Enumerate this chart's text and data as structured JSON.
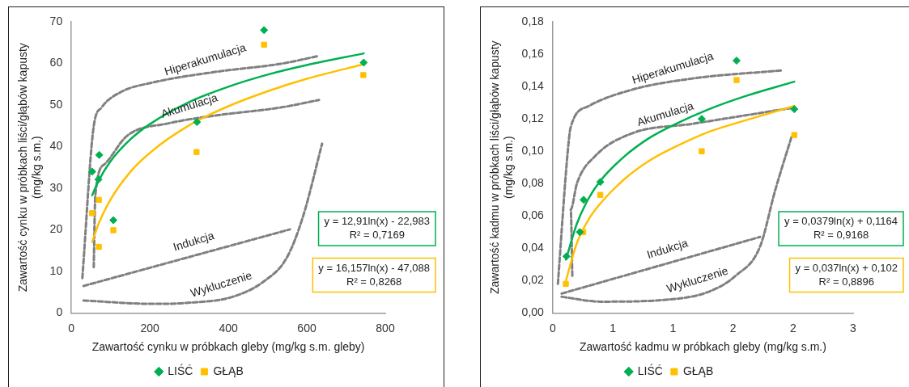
{
  "chart_data": [
    {
      "type": "scatter",
      "xlabel": "Zawartość cynku w próbkach gleby (mg/kg s.m. gleby)",
      "ylabel": "Zawartość cynku w próbkach liści/głąbów kapusty\n(mg/kg s.m.)",
      "xlim": [
        0,
        800
      ],
      "xticks": [
        0,
        200,
        400,
        600,
        800
      ],
      "ylim": [
        0,
        70
      ],
      "yticks": [
        0,
        10,
        20,
        30,
        40,
        50,
        60,
        70
      ],
      "grid": false,
      "legend": "bottom",
      "series": [
        {
          "name": "LIŚĆ",
          "marker": "diamond",
          "color": "#00b050",
          "x": [
            53,
            71,
            69,
            107,
            320,
            491,
            745
          ],
          "values": [
            34.0,
            38.0,
            32.1,
            22.3,
            45.9,
            68.0,
            60.2
          ]
        },
        {
          "name": "GŁĄB",
          "marker": "square",
          "color": "#ffc000",
          "x": [
            53,
            70,
            70,
            107,
            319,
            491,
            744
          ],
          "values": [
            24.0,
            27.2,
            15.9,
            19.9,
            38.7,
            64.5,
            57.2
          ]
        },
        {
          "type": "line",
          "marker": "none",
          "line_style": "solid",
          "color": "#00b050",
          "x": [
            53,
            70,
            100,
            150,
            200,
            300,
            400,
            500,
            600,
            745
          ],
          "values": [
            28.3,
            31.9,
            36.5,
            41.7,
            45.4,
            50.7,
            54.4,
            57.3,
            59.6,
            62.4
          ]
        },
        {
          "type": "line",
          "marker": "none",
          "line_style": "solid",
          "color": "#ffc000",
          "x": [
            53,
            70,
            100,
            150,
            200,
            300,
            400,
            500,
            600,
            745
          ],
          "values": [
            17.1,
            21.6,
            27.3,
            33.9,
            38.5,
            45.1,
            49.7,
            53.3,
            56.3,
            59.8
          ]
        },
        {
          "type": "line",
          "marker": "none",
          "line_style": "dashed",
          "color": "#808080",
          "x": [
            28,
            57,
            77,
            126,
            207,
            370,
            533,
            631
          ],
          "values": [
            8.4,
            44.9,
            49.4,
            53.1,
            55.4,
            58.0,
            59.9,
            61.8
          ]
        },
        {
          "type": "line",
          "marker": "none",
          "line_style": "dashed",
          "color": "#808080",
          "x": [
            57,
            61,
            85,
            142,
            248,
            370,
            533,
            631
          ],
          "values": [
            11.0,
            28.3,
            35.8,
            42.6,
            45.6,
            47.5,
            49.4,
            51.2
          ]
        },
        {
          "type": "line",
          "marker": "none",
          "line_style": "dashed",
          "color": "#808080",
          "x": [
            31,
            557
          ],
          "values": [
            6.5,
            20.1
          ]
        },
        {
          "type": "line",
          "marker": "none",
          "line_style": "dashed",
          "color": "#808080",
          "x": [
            31,
            207,
            289,
            411,
            492,
            549,
            590,
            639
          ],
          "values": [
            3.0,
            2.2,
            2.4,
            3.9,
            7.7,
            13.3,
            23.1,
            40.7
          ]
        }
      ],
      "annotations": [
        "Hiperakumulacja",
        "Akumulacja",
        "Indukcja",
        "Wykluczenie",
        "y = 12,91ln(x) - 22,983\nR² = 0,7169",
        "y = 16,157ln(x) - 47,088\nR² = 0,8268"
      ]
    },
    {
      "type": "scatter",
      "xlabel": "Zawartość kadmu w próbkach gleby (mg/kg s.m.)",
      "ylabel": "Zawartość kadmu w próbkach liści/głąbów kapusty\n(mg/kg s.m.)",
      "xlim": [
        0,
        2.5
      ],
      "xticks": [
        {
          "value": 0,
          "label": "0"
        },
        {
          "value": 0.5,
          "label": "1"
        },
        {
          "value": 1,
          "label": "1"
        },
        {
          "value": 1.5,
          "label": "2"
        },
        {
          "value": 2,
          "label": "2"
        },
        {
          "value": 2.5,
          "label": "3"
        }
      ],
      "ylim": [
        0,
        0.18
      ],
      "yticks": [
        {
          "value": 0,
          "label": "0,00"
        },
        {
          "value": 0.02,
          "label": "0,02"
        },
        {
          "value": 0.04,
          "label": "0,04"
        },
        {
          "value": 0.06,
          "label": "0,06"
        },
        {
          "value": 0.08,
          "label": "0,08"
        },
        {
          "value": 0.1,
          "label": "0,10"
        },
        {
          "value": 0.12,
          "label": "0,12"
        },
        {
          "value": 0.14,
          "label": "0,14"
        },
        {
          "value": 0.16,
          "label": "0,16"
        },
        {
          "value": 0.18,
          "label": "0,18"
        }
      ],
      "grid": false,
      "legend": "bottom",
      "series": [
        {
          "name": "LIŚĆ",
          "marker": "diamond",
          "color": "#00b050",
          "x": [
            0.114,
            0.226,
            0.257,
            0.396,
            1.24,
            1.53,
            2.01
          ],
          "values": [
            0.035,
            0.05,
            0.07,
            0.081,
            0.12,
            0.156,
            0.126
          ]
        },
        {
          "name": "GŁĄB",
          "marker": "square",
          "color": "#ffc000",
          "x": [
            0.109,
            0.254,
            0.396,
            1.24,
            1.53,
            2.01
          ],
          "values": [
            0.018,
            0.05,
            0.073,
            0.1,
            0.144,
            0.11
          ]
        },
        {
          "type": "line",
          "marker": "none",
          "line_style": "solid",
          "color": "#00b050",
          "x": [
            0.11,
            0.2,
            0.3,
            0.4,
            0.6,
            0.8,
            1.0,
            1.3,
            1.6,
            2.01
          ],
          "values": [
            0.033,
            0.055,
            0.071,
            0.082,
            0.097,
            0.108,
            0.116,
            0.126,
            0.134,
            0.143
          ]
        },
        {
          "type": "line",
          "marker": "none",
          "line_style": "solid",
          "color": "#ffc000",
          "x": [
            0.11,
            0.2,
            0.3,
            0.4,
            0.6,
            0.8,
            1.0,
            1.3,
            1.6,
            2.01
          ],
          "values": [
            0.02,
            0.043,
            0.058,
            0.068,
            0.083,
            0.094,
            0.102,
            0.112,
            0.119,
            0.128
          ]
        },
        {
          "type": "line",
          "marker": "none",
          "line_style": "dashed",
          "color": "#808080",
          "x": [
            0.043,
            0.124,
            0.15,
            0.302,
            0.658,
            1.166,
            1.916
          ],
          "values": [
            0.018,
            0.099,
            0.115,
            0.128,
            0.138,
            0.145,
            0.15
          ]
        },
        {
          "type": "line",
          "marker": "none",
          "line_style": "dashed",
          "color": "#808080",
          "x": [
            0.163,
            0.15,
            0.201,
            0.353,
            0.658,
            1.166,
            1.674,
            2.005
          ],
          "values": [
            0.023,
            0.064,
            0.08,
            0.097,
            0.111,
            0.117,
            0.123,
            0.127
          ]
        },
        {
          "type": "line",
          "marker": "none",
          "line_style": "dashed",
          "color": "#808080",
          "x": [
            0.074,
            1.725
          ],
          "values": [
            0.012,
            0.047
          ]
        },
        {
          "type": "line",
          "marker": "none",
          "line_style": "dashed",
          "color": "#808080",
          "x": [
            0.074,
            0.404,
            0.912,
            1.293,
            1.522,
            1.725,
            1.852,
            1.992
          ],
          "values": [
            0.01,
            0.007,
            0.008,
            0.013,
            0.023,
            0.041,
            0.076,
            0.11
          ]
        }
      ],
      "annotations": [
        "Hiperakumulacja",
        "Akumulacja",
        "Indukcja",
        "Wykluczenie",
        "y = 0,0379ln(x) + 0,1164\nR² = 0,9168",
        "y = 0,037ln(x) + 0,102\nR² = 0,8896"
      ]
    }
  ]
}
